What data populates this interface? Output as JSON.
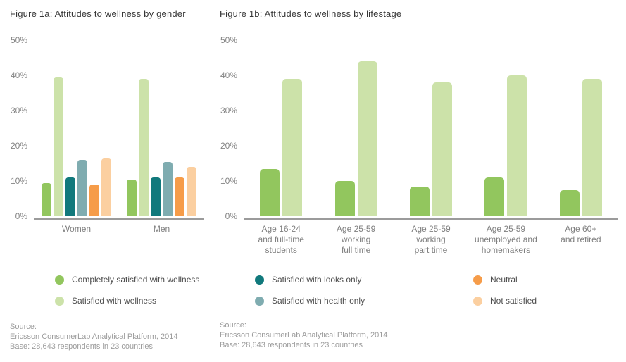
{
  "colors": {
    "green": "#92C65E",
    "light_green": "#CCE2A9",
    "dark_teal": "#11797C",
    "blue_gray": "#7FACB0",
    "orange": "#F69C49",
    "light_orange": "#FBCFA0",
    "axis_line": "#9B9B9B",
    "axis_text": "#848484",
    "title_text": "#363636",
    "source_text": "#9C9C9C"
  },
  "chart_data": [
    {
      "type": "bar",
      "title": "Figure 1a: Attitudes to wellness by gender",
      "categories": [
        [
          "Women"
        ],
        [
          "Men"
        ]
      ],
      "series": [
        {
          "name": "Completely satisfied with wellness",
          "color": "#92C65E",
          "values": [
            9.5,
            10.5
          ]
        },
        {
          "name": "Satisfied with wellness",
          "color": "#CCE2A9",
          "values": [
            39.5,
            39
          ]
        },
        {
          "name": "Satisfied with looks only",
          "color": "#11797C",
          "values": [
            11,
            11
          ]
        },
        {
          "name": "Satisfied with health only",
          "color": "#7FACB0",
          "values": [
            16,
            15.5
          ]
        },
        {
          "name": "Neutral",
          "color": "#F69C49",
          "values": [
            9,
            11
          ]
        },
        {
          "name": "Not satisfied",
          "color": "#FBCFA0",
          "values": [
            16.5,
            14
          ]
        }
      ],
      "ylim": [
        0,
        50
      ],
      "yticks": [
        {
          "value": 0,
          "label": "0%"
        },
        {
          "value": 10,
          "label": "10%"
        },
        {
          "value": 20,
          "label": "20%"
        },
        {
          "value": 30,
          "label": "30%"
        },
        {
          "value": 40,
          "label": "40%"
        },
        {
          "value": 50,
          "label": "50%"
        }
      ],
      "grid": false,
      "legend_position": "bottom"
    },
    {
      "type": "bar",
      "title": "Figure 1b: Attitudes to wellness by lifestage",
      "categories": [
        [
          "Age 16-24",
          "and full-time",
          "students"
        ],
        [
          "Age 25-59",
          "working",
          "full time"
        ],
        [
          "Age 25-59",
          "working",
          "part time"
        ],
        [
          "Age 25-59",
          "unemployed and",
          "homemakers"
        ],
        [
          "Age 60+",
          "and retired"
        ]
      ],
      "series": [
        {
          "name": "Completely satisfied with wellness",
          "color": "#92C65E",
          "values": [
            13.5,
            10,
            8.5,
            11,
            7.5
          ]
        },
        {
          "name": "Satisfied with wellness",
          "color": "#CCE2A9",
          "values": [
            39,
            44,
            38,
            40,
            39
          ]
        }
      ],
      "ylim": [
        0,
        50
      ],
      "yticks": [
        {
          "value": 0,
          "label": "0%"
        },
        {
          "value": 10,
          "label": "10%"
        },
        {
          "value": 20,
          "label": "20%"
        },
        {
          "value": 30,
          "label": "30%"
        },
        {
          "value": 40,
          "label": "40%"
        },
        {
          "value": 50,
          "label": "50%"
        }
      ],
      "grid": false,
      "legend_position": "bottom"
    }
  ],
  "legend": {
    "columns": [
      [
        {
          "label": "Completely satisfied with wellness",
          "color": "#92C65E"
        },
        {
          "label": "Satisfied with wellness",
          "color": "#CCE2A9"
        }
      ],
      [
        {
          "label": "Satisfied with looks only",
          "color": "#11797C"
        },
        {
          "label": "Satisfied with health only",
          "color": "#7FACB0"
        }
      ],
      [
        {
          "label": "Neutral",
          "color": "#F69C49"
        },
        {
          "label": "Not satisfied",
          "color": "#FBCFA0"
        }
      ]
    ]
  },
  "sources": [
    {
      "lines": [
        "Source:",
        "Ericsson ConsumerLab Analytical Platform, 2014",
        "Base: 28,643 respondents in 23 countries"
      ]
    },
    {
      "lines": [
        "Source:",
        "Ericsson ConsumerLab Analytical Platform, 2014",
        "Base: 28,643 respondents in 23 countries"
      ]
    }
  ]
}
